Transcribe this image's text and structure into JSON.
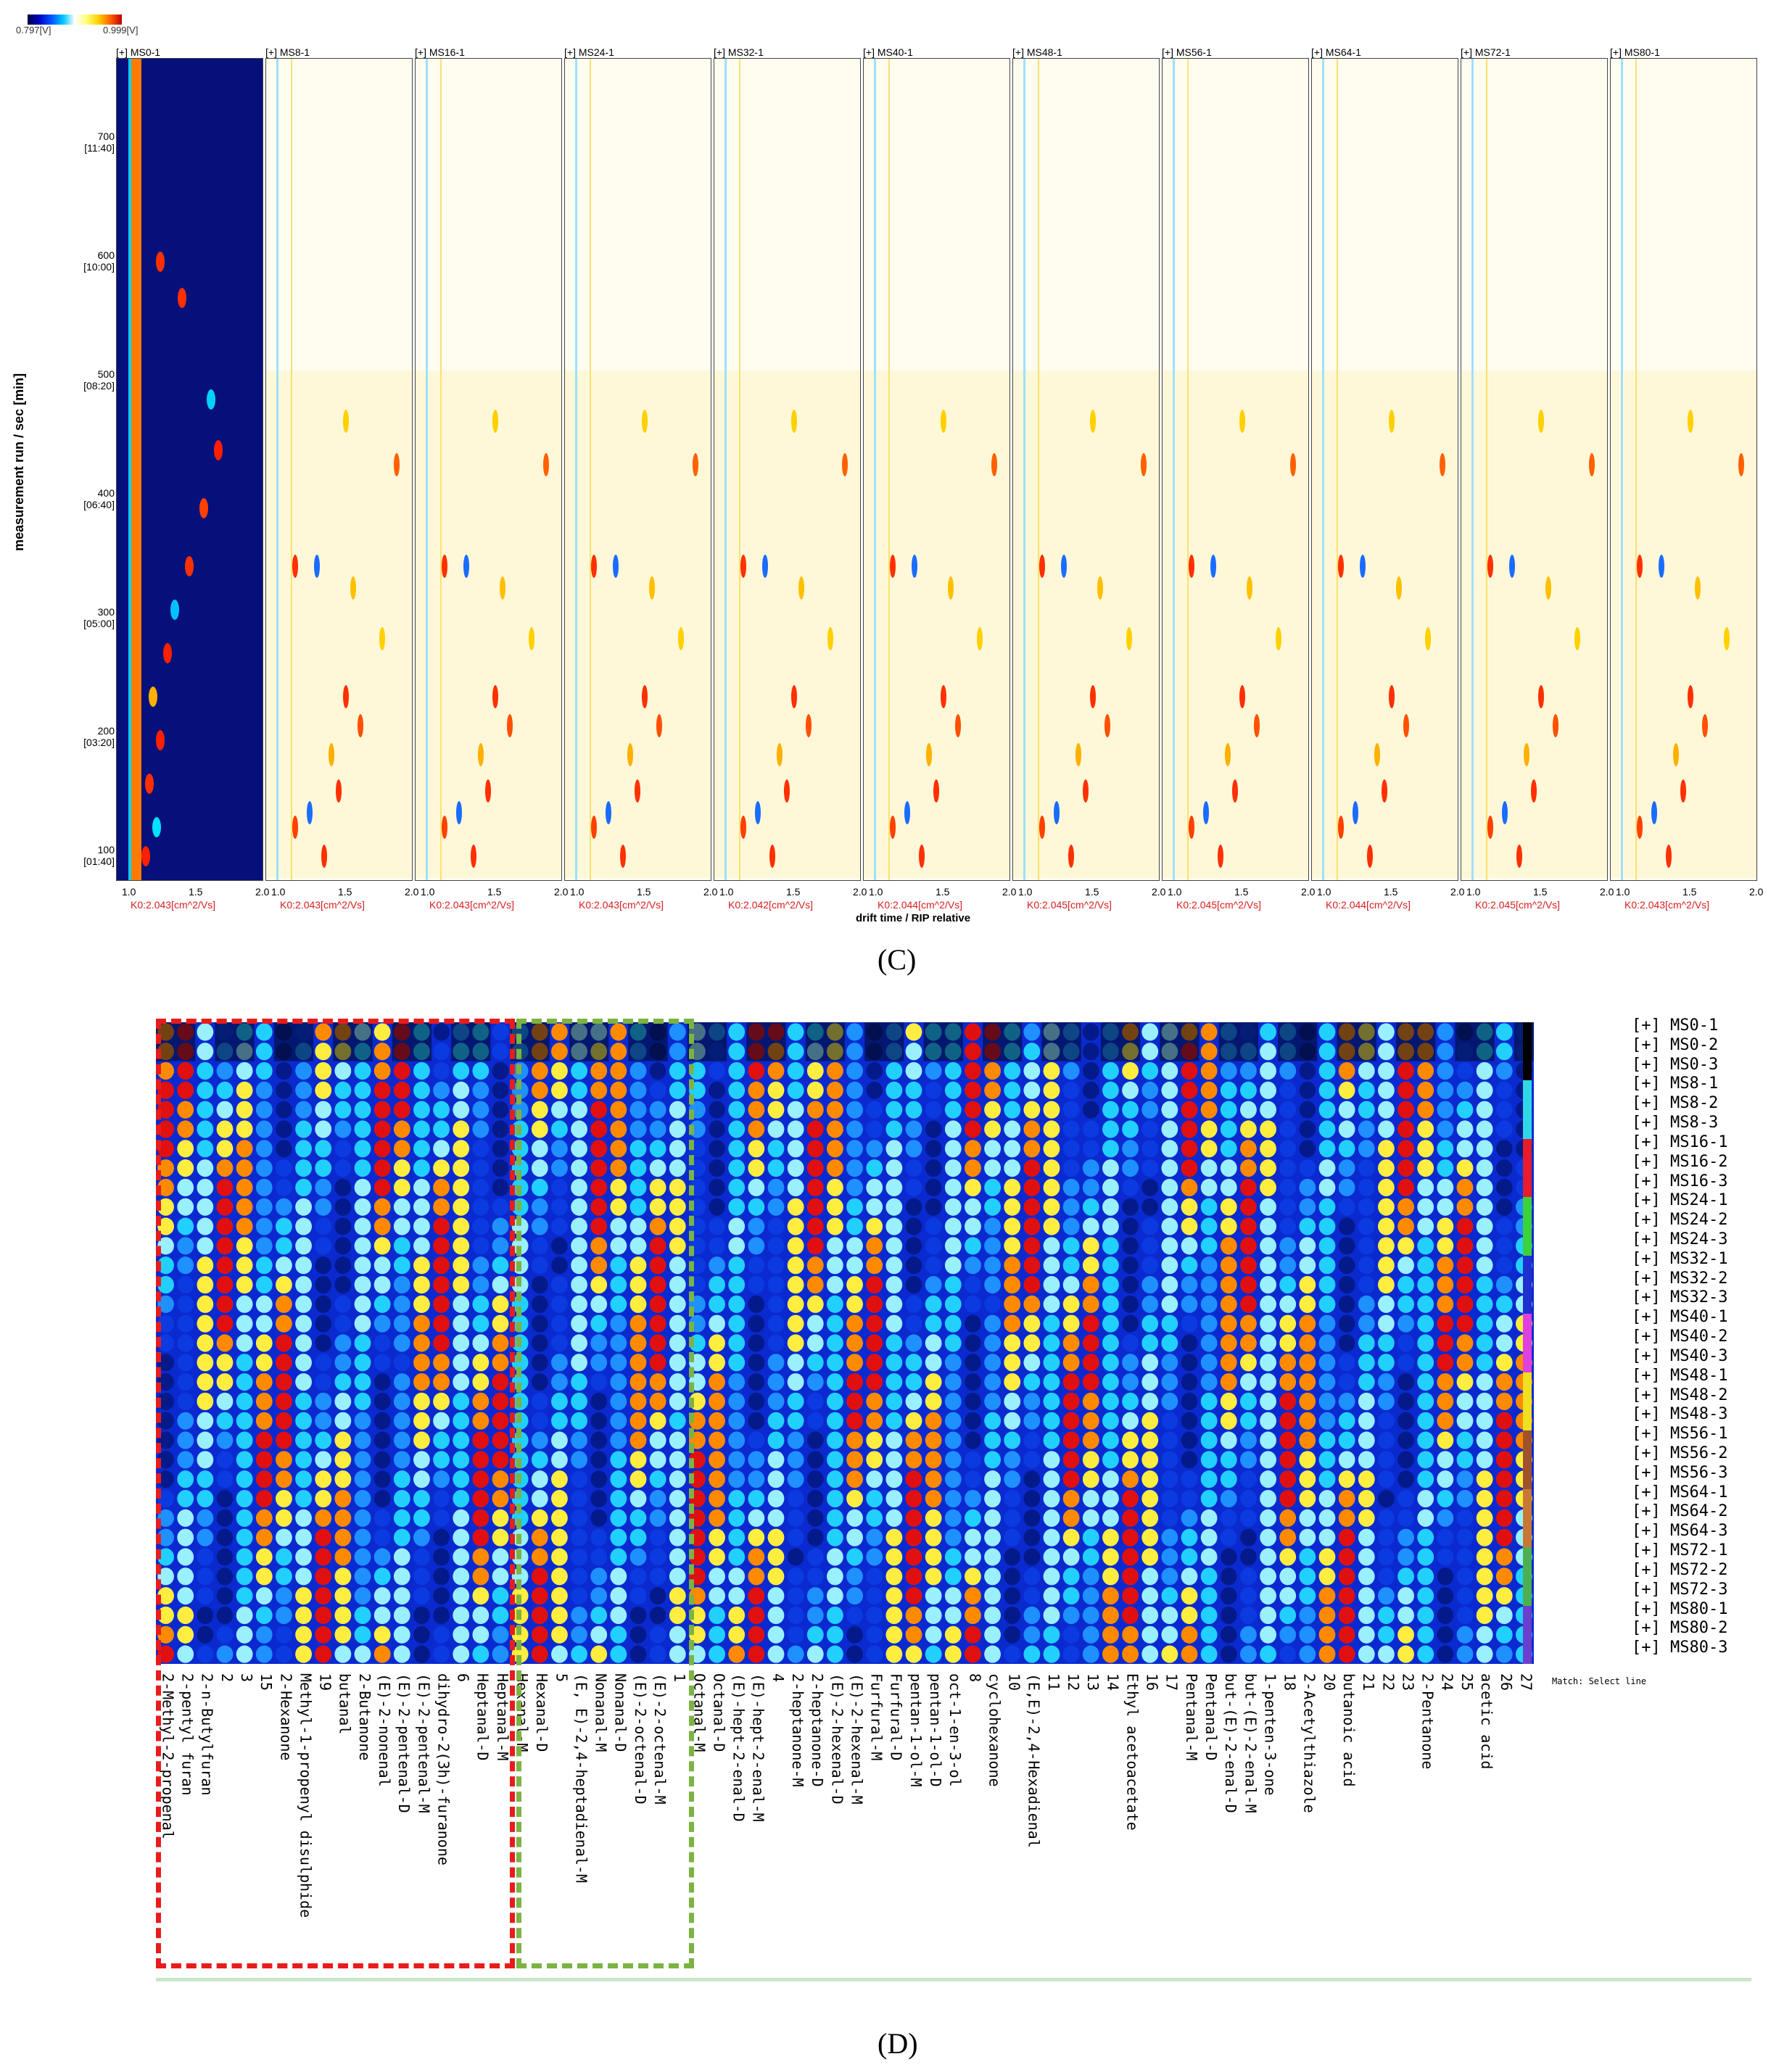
{
  "panel_c": {
    "label": "(C)",
    "legend": {
      "min_label": "0.797[V]",
      "max_label": "0.999[V]"
    },
    "y_title": "measurement run / sec [min]",
    "x_title": "drift time / RIP relative",
    "y_ticks": [
      {
        "top": "700",
        "bottom": "[11:40]"
      },
      {
        "top": "600",
        "bottom": "[10:00]"
      },
      {
        "top": "500",
        "bottom": "[08:20]"
      },
      {
        "top": "400",
        "bottom": "[06:40]"
      },
      {
        "top": "300",
        "bottom": "[05:00]"
      },
      {
        "top": "200",
        "bottom": "[03:20]"
      },
      {
        "top": "100",
        "bottom": "[01:40]"
      }
    ],
    "x_ticks": [
      "1.0",
      "1.5",
      "2.0"
    ],
    "panels": [
      {
        "title": "[+] MS0-1",
        "k0": "K0:2.043[cm^2/Vs]"
      },
      {
        "title": "[+] MS8-1",
        "k0": "K0:2.043[cm^2/Vs]"
      },
      {
        "title": "[+] MS16-1",
        "k0": "K0:2.043[cm^2/Vs]"
      },
      {
        "title": "[+] MS24-1",
        "k0": "K0:2.043[cm^2/Vs]"
      },
      {
        "title": "[+] MS32-1",
        "k0": "K0:2.042[cm^2/Vs]"
      },
      {
        "title": "[+] MS40-1",
        "k0": "K0:2.044[cm^2/Vs]"
      },
      {
        "title": "[+] MS48-1",
        "k0": "K0:2.045[cm^2/Vs]"
      },
      {
        "title": "[+] MS56-1",
        "k0": "K0:2.045[cm^2/Vs]"
      },
      {
        "title": "[+] MS64-1",
        "k0": "K0:2.044[cm^2/Vs]"
      },
      {
        "title": "[+] MS72-1",
        "k0": "K0:2.045[cm^2/Vs]"
      },
      {
        "title": "[+] MS80-1",
        "k0": "K0:2.043[cm^2/Vs]"
      }
    ]
  },
  "panel_d": {
    "label": "(D)",
    "match_text": "Match: Select line",
    "samples": [
      "[+] MS0-1",
      "[+] MS0-2",
      "[+] MS0-3",
      "[+] MS8-1",
      "[+] MS8-2",
      "[+] MS8-3",
      "[+] MS16-1",
      "[+] MS16-2",
      "[+] MS16-3",
      "[+] MS24-1",
      "[+] MS24-2",
      "[+] MS24-3",
      "[+] MS32-1",
      "[+] MS32-2",
      "[+] MS32-3",
      "[+] MS40-1",
      "[+] MS40-2",
      "[+] MS40-3",
      "[+] MS48-1",
      "[+] MS48-2",
      "[+] MS48-3",
      "[+] MS56-1",
      "[+] MS56-2",
      "[+] MS56-3",
      "[+] MS64-1",
      "[+] MS64-2",
      "[+] MS64-3",
      "[+] MS72-1",
      "[+] MS72-2",
      "[+] MS72-3",
      "[+] MS80-1",
      "[+] MS80-2",
      "[+] MS80-3"
    ],
    "group_colors": [
      "#000000",
      "#2fd8e8",
      "#e81c2a",
      "#3cd23c",
      "#1f2fd0",
      "#e040e0",
      "#f0e020",
      "#a0522d",
      "#c87832",
      "#4caf50",
      "#6a3fd0"
    ],
    "compounds": [
      "2-Methyl-2-propenal",
      "2-pentyl furan",
      "2-n-Butylfuran",
      "2",
      "3",
      "15",
      "2-Hexanone",
      "Methyl-1-propenyl disulphide",
      "19",
      "butanal",
      "2-Butanone",
      "(E)-2-nonenal",
      "(E)-2-pentenal-D",
      "(E)-2-pentenal-M",
      "dihydro-2(3h)-furanone",
      "6",
      "Heptanal-D",
      "Heptanal-M",
      "Hexanal-M",
      "Hexanal-D",
      "5",
      "(E, E)-2,4-heptadienal-M",
      "Nonanal-M",
      "Nonanal-D",
      "(E)-2-octenal-D",
      "(E)-2-octenal-M",
      "1",
      "Octanal-M",
      "Octanal-D",
      "(E)-hept-2-enal-D",
      "(E)-hept-2-enal-M",
      "4",
      "2-heptanone-M",
      "2-heptanone-D",
      "(E)-2-hexenal-D",
      "(E)-2-hexenal-M",
      "Furfural-M",
      "Furfural-D",
      "pentan-1-ol-M",
      "pentan-1-ol-D",
      "oct-1-en-3-ol",
      "8",
      "cyclohexanone",
      "10",
      "(E,E)-2,4-Hexadienal",
      "11",
      "12",
      "13",
      "14",
      "Ethyl acetoacetate",
      "16",
      "17",
      "Pentanal-M",
      "Pentanal-D",
      "but-(E)-2-enal-D",
      "but-(E)-2-enal-M",
      "1-penten-3-one",
      "18",
      "2-Acetylthiazole",
      "20",
      "butanoic acid",
      "21",
      "22",
      "23",
      "2-Pentanone",
      "24",
      "25",
      "acetic acid",
      "26",
      "27"
    ]
  }
}
